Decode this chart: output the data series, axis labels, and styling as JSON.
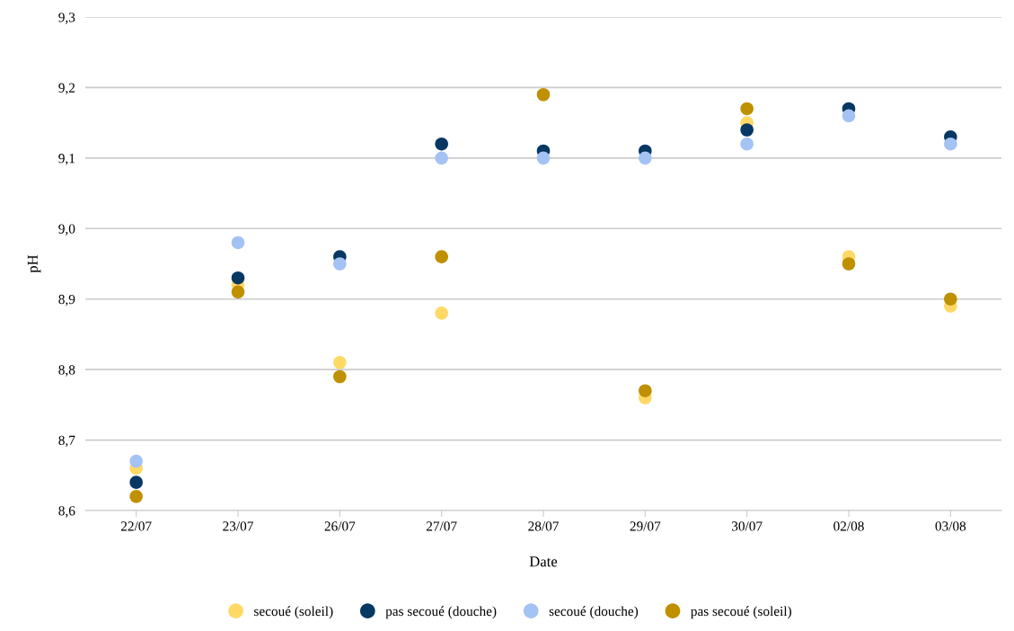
{
  "chart_data": {
    "type": "scatter",
    "xlabel": "Date",
    "ylabel": "pH",
    "categories": [
      "22/07",
      "23/07",
      "26/07",
      "27/07",
      "28/07",
      "29/07",
      "30/07",
      "02/08",
      "03/08"
    ],
    "series": [
      {
        "name": "secoué (soleil)",
        "color": "#ffd966",
        "values": [
          8.66,
          8.92,
          8.81,
          8.88,
          null,
          8.76,
          9.15,
          8.96,
          8.89
        ]
      },
      {
        "name": "pas secoué (douche)",
        "color": "#073763",
        "values": [
          8.64,
          8.93,
          8.96,
          9.12,
          9.11,
          9.11,
          9.14,
          9.17,
          9.13
        ]
      },
      {
        "name": "secoué (douche)",
        "color": "#a4c2f4",
        "values": [
          8.67,
          8.98,
          8.95,
          9.1,
          9.1,
          9.1,
          9.12,
          9.16,
          9.12
        ]
      },
      {
        "name": "pas secoué (soleil)",
        "color": "#bf9000",
        "values": [
          8.62,
          8.91,
          8.79,
          8.96,
          9.19,
          8.77,
          9.17,
          8.95,
          8.9
        ]
      }
    ],
    "ylim": [
      8.6,
      9.3
    ],
    "yticks": [
      {
        "value": 8.6,
        "label": "8,6"
      },
      {
        "value": 8.7,
        "label": "8,7"
      },
      {
        "value": 8.8,
        "label": "8,8"
      },
      {
        "value": 8.9,
        "label": "8,9"
      },
      {
        "value": 9.0,
        "label": "9,0"
      },
      {
        "value": 9.1,
        "label": "9,1"
      },
      {
        "value": 9.2,
        "label": "9,2"
      },
      {
        "value": 9.3,
        "label": "9,3"
      }
    ],
    "grid": "y",
    "legend": "bottom",
    "marker": "circle"
  }
}
